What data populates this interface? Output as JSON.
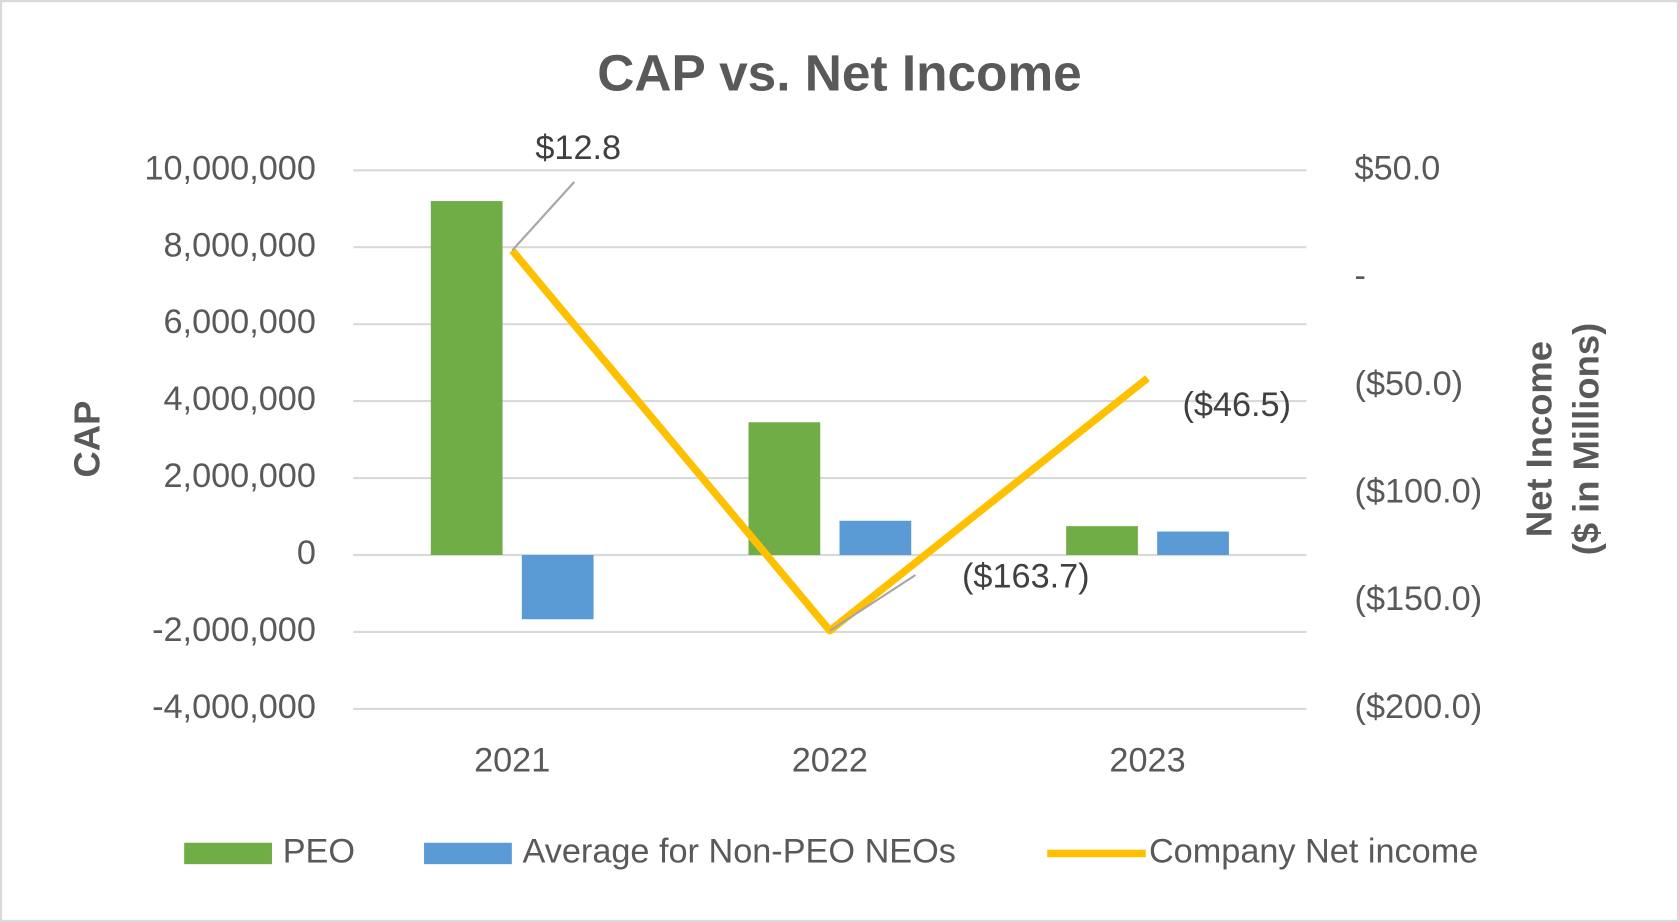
{
  "chart_data": {
    "type": "bar_line",
    "title": "CAP vs. Net Income",
    "y_label": "CAP",
    "y2_label": [
      "Net Income",
      "($ in Millions)"
    ],
    "categories": [
      "2021",
      "2022",
      "2023"
    ],
    "series": [
      {
        "name": "PEO",
        "color": "#70ad47",
        "type": "bar",
        "values": [
          9200000,
          3450000,
          750000
        ]
      },
      {
        "name": "Average for Non-PEO NEOs",
        "color": "#5b9bd5",
        "type": "bar",
        "values": [
          -1670000,
          890000,
          610000
        ]
      },
      {
        "name": "Company Net income",
        "color": "#ffc000",
        "type": "line",
        "axis": "y2",
        "values": [
          12.8,
          -163.7,
          -46.5
        ],
        "value_labels": [
          "$12.8",
          "($163.7)",
          "($46.5)"
        ]
      }
    ],
    "ylim": [
      -4000000,
      10000000
    ],
    "yticks": [
      {
        "value": -4000000,
        "label": "-4,000,000"
      },
      {
        "value": -2000000,
        "label": "-2,000,000"
      },
      0,
      {
        "value": 2000000,
        "label": "2,000,000"
      },
      {
        "value": 4000000,
        "label": "4,000,000"
      },
      {
        "value": 6000000,
        "label": "6,000,000"
      },
      {
        "value": 8000000,
        "label": "8,000,000"
      },
      {
        "value": 10000000,
        "label": "10,000,000"
      }
    ],
    "y2lim": [
      -200,
      50
    ],
    "y2ticks": [
      {
        "value": -200,
        "label": "($200.0)"
      },
      {
        "value": -150,
        "label": "($150.0)"
      },
      {
        "value": -100,
        "label": "($100.0)"
      },
      {
        "value": -50,
        "label": "($50.0)"
      },
      {
        "value": 0,
        "label": "-"
      },
      {
        "value": 50,
        "label": "$50.0"
      }
    ],
    "grid": true,
    "legend": "bottom"
  }
}
